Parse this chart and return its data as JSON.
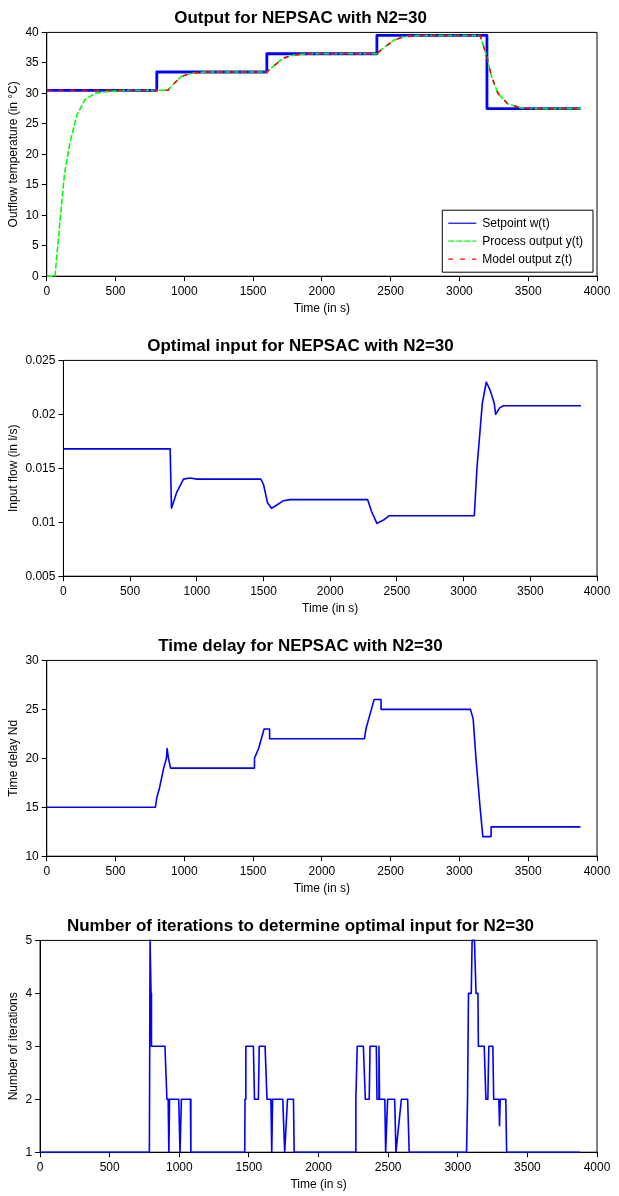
{
  "chart_data": [
    {
      "type": "line",
      "title": "Output for NEPSAC with N2=30",
      "xlabel": "Time (in s)",
      "ylabel": "Outflow temperature (in °C)",
      "xlim": [
        0,
        4000
      ],
      "xticks": [
        0,
        500,
        1000,
        1500,
        2000,
        2500,
        3000,
        3500,
        4000
      ],
      "ylim": [
        0,
        40
      ],
      "yticks": [
        0,
        5,
        10,
        15,
        20,
        25,
        30,
        35,
        40
      ],
      "legend": "bottom right",
      "marker": "none",
      "series": [
        {
          "name": "Setpoint w(t)",
          "color": "#0000ff",
          "line_style": "solid",
          "x": [
            0,
            800,
            800,
            1600,
            1600,
            2400,
            2400,
            3200,
            3200,
            3880
          ],
          "values": [
            30.5,
            30.5,
            33.5,
            33.5,
            36.5,
            36.5,
            39.5,
            39.5,
            27.5,
            27.5
          ]
        },
        {
          "name": "Process output y(t)",
          "color": "#00ff00",
          "line_style": "dashed",
          "x": [
            0,
            60,
            100,
            130,
            170,
            220,
            280,
            350,
            450,
            600,
            880,
            920,
            980,
            1050,
            1150,
            1600,
            1650,
            1720,
            1800,
            1900,
            2400,
            2450,
            2530,
            2600,
            2700,
            3150,
            3200,
            3230,
            3280,
            3350,
            3450,
            3550,
            3880
          ],
          "values": [
            0,
            0,
            10,
            17,
            22,
            26.5,
            29,
            30,
            30.3,
            30.5,
            30.5,
            31.5,
            32.8,
            33.3,
            33.5,
            33.5,
            34.5,
            35.8,
            36.3,
            36.5,
            36.5,
            37.5,
            38.8,
            39.3,
            39.5,
            39.5,
            36,
            33,
            30,
            28.3,
            27.6,
            27.5,
            27.5
          ]
        },
        {
          "name": "Model output z(t)",
          "color": "#ff0000",
          "line_style": "dashed",
          "x": [
            0,
            880,
            920,
            980,
            1050,
            1150,
            1600,
            1650,
            1720,
            1800,
            1900,
            2400,
            2450,
            2530,
            2600,
            2700,
            3150,
            3200,
            3230,
            3280,
            3350,
            3450,
            3550,
            3860
          ],
          "values": [
            30.5,
            30.5,
            31.5,
            32.8,
            33.3,
            33.5,
            33.5,
            34.5,
            35.8,
            36.3,
            36.5,
            36.5,
            37.5,
            38.8,
            39.3,
            39.5,
            39.5,
            36,
            33,
            30,
            28.3,
            27.6,
            27.5,
            27.5
          ]
        }
      ]
    },
    {
      "type": "line",
      "title": "Optimal input for NEPSAC with N2=30",
      "xlabel": "Time (in s)",
      "ylabel": "Input flow (in l/s)",
      "xlim": [
        0,
        4000
      ],
      "xticks": [
        0,
        500,
        1000,
        1500,
        2000,
        2500,
        3000,
        3500,
        4000
      ],
      "ylim": [
        0.005,
        0.025
      ],
      "yticks": [
        0.005,
        0.01,
        0.015,
        0.02,
        0.025
      ],
      "marker": "none",
      "series": [
        {
          "color": "#0000ff",
          "x": [
            0,
            800,
            810,
            850,
            900,
            950,
            1000,
            1480,
            1500,
            1530,
            1560,
            1600,
            1650,
            1700,
            2280,
            2310,
            2350,
            2400,
            2440,
            3080,
            3100,
            3140,
            3170,
            3200,
            3230,
            3240,
            3270,
            3300,
            3880
          ],
          "values": [
            0.0168,
            0.0168,
            0.0113,
            0.0128,
            0.014,
            0.0141,
            0.014,
            0.014,
            0.0135,
            0.0118,
            0.0113,
            0.0116,
            0.012,
            0.0121,
            0.0121,
            0.011,
            0.0099,
            0.0102,
            0.0106,
            0.0106,
            0.015,
            0.021,
            0.023,
            0.0222,
            0.021,
            0.02,
            0.0206,
            0.0208,
            0.0208
          ]
        }
      ]
    },
    {
      "type": "line",
      "title": "Time delay for NEPSAC with N2=30",
      "xlabel": "Time (in s)",
      "ylabel": "Time delay Nd",
      "xlim": [
        0,
        4000
      ],
      "xticks": [
        0,
        500,
        1000,
        1500,
        2000,
        2500,
        3000,
        3500,
        4000
      ],
      "ylim": [
        10,
        30
      ],
      "yticks": [
        10,
        15,
        20,
        25,
        30
      ],
      "marker": "none",
      "series": [
        {
          "color": "#0000ff",
          "x": [
            0,
            790,
            800,
            820,
            835,
            850,
            870,
            875,
            885,
            900,
            1510,
            1510,
            1540,
            1560,
            1580,
            1620,
            1620,
            2310,
            2320,
            2340,
            2360,
            2380,
            2430,
            2430,
            3080,
            3100,
            3120,
            3150,
            3170,
            3230,
            3230,
            3880
          ],
          "values": [
            15,
            15,
            16,
            17,
            18,
            19,
            20,
            21,
            20,
            19,
            19,
            20,
            21,
            22,
            23,
            23,
            22,
            22,
            23,
            24,
            25,
            26,
            26,
            25,
            25,
            24,
            20,
            15,
            12,
            12,
            13,
            13
          ]
        }
      ]
    },
    {
      "type": "line",
      "title": "Number of iterations to determine optimal input for N2=30",
      "xlabel": "Time (in s)",
      "ylabel": "Number of iterations",
      "xlim": [
        0,
        4000
      ],
      "xticks": [
        0,
        500,
        1000,
        1500,
        2000,
        2500,
        3000,
        3500,
        4000
      ],
      "ylim": [
        1,
        5
      ],
      "yticks": [
        1,
        2,
        3,
        4,
        5
      ],
      "marker": "none",
      "series": [
        {
          "color": "#0000ff",
          "x": [
            0,
            785,
            790,
            795,
            797,
            800,
            897,
            911,
            920,
            925,
            930,
            996,
            1005,
            1015,
            1080,
            1083,
            1470,
            1472,
            1478,
            1532,
            1540,
            1568,
            1574,
            1616,
            1630,
            1658,
            1664,
            1670,
            1743,
            1757,
            1777,
            1820,
            1825,
            2265,
            2268,
            2278,
            2322,
            2336,
            2364,
            2370,
            2415,
            2420,
            2430,
            2434,
            2438,
            2476,
            2482,
            2496,
            2547,
            2556,
            2595,
            2640,
            2651,
            3063,
            3070,
            3077,
            3097,
            3103,
            3120,
            3131,
            3145,
            3148,
            3190,
            3202,
            3216,
            3223,
            3252,
            3258,
            3295,
            3300,
            3305,
            3345,
            3351,
            3875
          ],
          "values": [
            1,
            1,
            5,
            5,
            4,
            3,
            3,
            2,
            2,
            1,
            2,
            2,
            1,
            2,
            2,
            1,
            1,
            2,
            3,
            3,
            2,
            2,
            3,
            3,
            2,
            2,
            1,
            2,
            2,
            1,
            2,
            2,
            1,
            1,
            2,
            3,
            3,
            2,
            2,
            3,
            3,
            2,
            2,
            3,
            2,
            2,
            1,
            2,
            2,
            1,
            2,
            2,
            1,
            1,
            2,
            4,
            4,
            5,
            5,
            4,
            4,
            3,
            3,
            2,
            2,
            3,
            3,
            2,
            2,
            1.5,
            2,
            2,
            1,
            1
          ]
        }
      ]
    }
  ]
}
